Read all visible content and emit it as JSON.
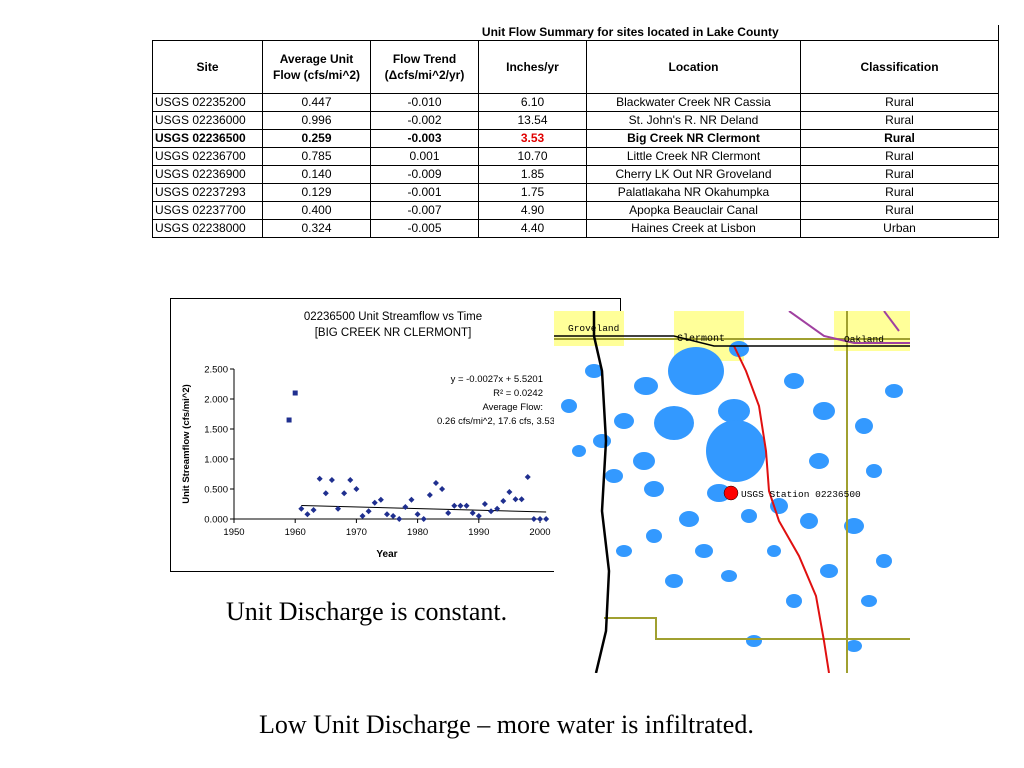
{
  "table": {
    "title": "Unit Flow Summary for sites located in Lake County",
    "headers": [
      "Site",
      "Average Unit Flow (cfs/mi^2)",
      "Flow Trend (Δcfs/mi^2/yr)",
      "Inches/yr",
      "Location",
      "Classification"
    ],
    "rows": [
      [
        "USGS 02235200",
        "0.447",
        "-0.010",
        "6.10",
        "Blackwater Creek NR Cassia",
        "Rural"
      ],
      [
        "USGS 02236000",
        "0.996",
        "-0.002",
        "13.54",
        "St. John's R. NR Deland",
        "Rural"
      ],
      [
        "USGS 02236500",
        "0.259",
        "-0.003",
        "3.53",
        "Big Creek NR Clermont",
        "Rural"
      ],
      [
        "USGS 02236700",
        "0.785",
        "0.001",
        "10.70",
        "Little Creek NR Clermont",
        "Rural"
      ],
      [
        "USGS 02236900",
        "0.140",
        "-0.009",
        "1.85",
        "Cherry LK Out NR Groveland",
        "Rural"
      ],
      [
        "USGS 02237293",
        "0.129",
        "-0.001",
        "1.75",
        "Palatlakaha NR Okahumpka",
        "Rural"
      ],
      [
        "USGS 02237700",
        "0.400",
        "-0.007",
        "4.90",
        "Apopka Beauclair Canal",
        "Rural"
      ],
      [
        "USGS 02238000",
        "0.324",
        "-0.005",
        "4.40",
        "Haines Creek at Lisbon",
        "Urban"
      ]
    ],
    "highlight_row_index": 2,
    "highlight_color": "#e00000"
  },
  "chart_data": {
    "type": "scatter",
    "title": "02236500 Unit Streamflow vs Time",
    "subtitle": "[BIG CREEK NR CLERMONT]",
    "xlabel": "Year",
    "ylabel": "Unit Streamflow (cfs/mi^2)",
    "xlim": [
      1950,
      2000
    ],
    "ylim": [
      0,
      2.5
    ],
    "xticks": [
      "1950",
      "1960",
      "1970",
      "1980",
      "1990",
      "2000"
    ],
    "yticks": [
      "0.000",
      "0.500",
      "1.000",
      "1.500",
      "2.000",
      "2.500"
    ],
    "grid": false,
    "marker_color": "#1f2f8f",
    "annotation": {
      "equation": "y = -0.0027x + 5.5201",
      "r2": "R² = 0.0242",
      "avg_label": "Average Flow:",
      "avg_value": "0.26 cfs/mi^2, 17.6 cfs, 3.53"
    },
    "trendline": {
      "slope": -0.0027,
      "intercept": 5.5201,
      "x_start": 1961,
      "x_end": 2001
    },
    "points": [
      [
        1959,
        1.65
      ],
      [
        1960,
        2.1
      ],
      [
        1961,
        0.17
      ],
      [
        1962,
        0.08
      ],
      [
        1963,
        0.15
      ],
      [
        1964,
        0.67
      ],
      [
        1965,
        0.43
      ],
      [
        1966,
        0.65
      ],
      [
        1967,
        0.17
      ],
      [
        1968,
        0.43
      ],
      [
        1969,
        0.65
      ],
      [
        1970,
        0.5
      ],
      [
        1971,
        0.05
      ],
      [
        1972,
        0.13
      ],
      [
        1973,
        0.27
      ],
      [
        1974,
        0.32
      ],
      [
        1975,
        0.08
      ],
      [
        1976,
        0.05
      ],
      [
        1977,
        0.0
      ],
      [
        1978,
        0.2
      ],
      [
        1979,
        0.32
      ],
      [
        1980,
        0.08
      ],
      [
        1981,
        0.0
      ],
      [
        1982,
        0.4
      ],
      [
        1983,
        0.6
      ],
      [
        1984,
        0.5
      ],
      [
        1985,
        0.1
      ],
      [
        1986,
        0.22
      ],
      [
        1987,
        0.22
      ],
      [
        1988,
        0.22
      ],
      [
        1989,
        0.1
      ],
      [
        1990,
        0.05
      ],
      [
        1991,
        0.25
      ],
      [
        1992,
        0.13
      ],
      [
        1993,
        0.17
      ],
      [
        1994,
        0.3
      ],
      [
        1995,
        0.45
      ],
      [
        1996,
        0.33
      ],
      [
        1997,
        0.33
      ],
      [
        1998,
        0.7
      ],
      [
        1999,
        0.0
      ],
      [
        2000,
        0.0
      ],
      [
        2001,
        0.0
      ]
    ]
  },
  "map": {
    "labels": {
      "groveland": "Groveland",
      "clermont": "Clermont",
      "oakland": "Oakland",
      "station": "USGS Station 02236500"
    },
    "colors": {
      "lake": "#3399ff",
      "town": "#ffff99",
      "road_red": "#e01010",
      "road_olive": "#a0a030",
      "road_purple": "#a040a0",
      "county_line": "#000000",
      "station_marker": "#ff0000"
    }
  },
  "captions": {
    "line1": "Unit Discharge is constant.",
    "line2": "Low Unit Discharge – more water is infiltrated."
  }
}
